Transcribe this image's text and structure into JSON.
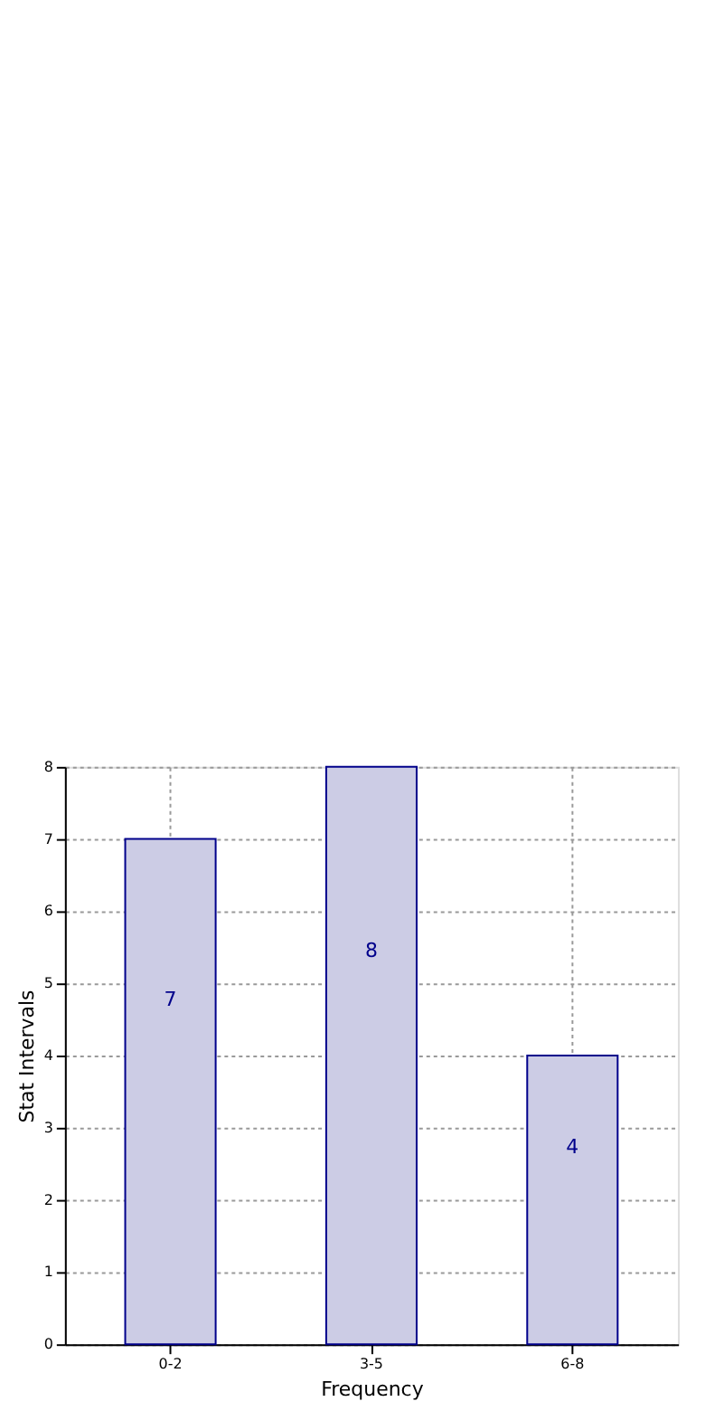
{
  "chart_data": {
    "type": "bar",
    "xlabel": "Frequency",
    "ylabel": "Stat Intervals",
    "categories": [
      "0-2",
      "3-5",
      "6-8"
    ],
    "values": [
      7,
      8,
      4
    ],
    "color": "#ccccE5",
    "ylim": [
      0,
      8
    ],
    "yticks": [
      0,
      1,
      2,
      3,
      4,
      5,
      6,
      7,
      8
    ],
    "grid": true,
    "data_labels": true
  }
}
